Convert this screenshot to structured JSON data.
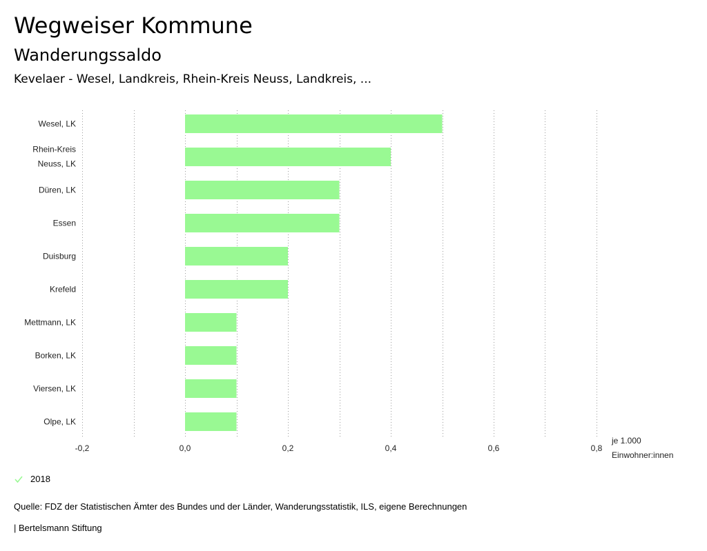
{
  "header": {
    "title": "Wegweiser Kommune",
    "subtitle": "Wanderungssaldo",
    "region": "Kevelaer - Wesel, Landkreis, Rhein-Kreis Neuss, Landkreis, ..."
  },
  "chart_data": {
    "type": "bar",
    "orientation": "horizontal",
    "categories": [
      [
        "Wesel, LK"
      ],
      [
        "Rhein-Kreis",
        "Neuss, LK"
      ],
      [
        "Düren, LK"
      ],
      [
        "Essen"
      ],
      [
        "Duisburg"
      ],
      [
        "Krefeld"
      ],
      [
        "Mettmann, LK"
      ],
      [
        "Borken, LK"
      ],
      [
        "Viersen, LK"
      ],
      [
        "Olpe, LK"
      ]
    ],
    "series": [
      {
        "name": "2018",
        "color": "#99f993",
        "values": [
          0.5,
          0.4,
          0.3,
          0.3,
          0.2,
          0.2,
          0.1,
          0.1,
          0.1,
          0.1
        ]
      }
    ],
    "xlim": [
      -0.2,
      0.8
    ],
    "ticks": [
      -0.2,
      0.0,
      0.2,
      0.4,
      0.6,
      0.8
    ],
    "tick_labels": [
      "-0,2",
      "0,0",
      "0,2",
      "0,4",
      "0,6",
      "0,8"
    ],
    "unit_label": [
      "je 1.000",
      "Einwohner:innen"
    ],
    "grid": "dotted vertical"
  },
  "legend": {
    "label": "2018",
    "color": "#99f993"
  },
  "footer": {
    "source": "Quelle: FDZ der Statistischen Ämter des Bundes und der Länder, Wanderungsstatistik, ILS, eigene Berechnungen",
    "publisher": "| Bertelsmann Stiftung"
  }
}
